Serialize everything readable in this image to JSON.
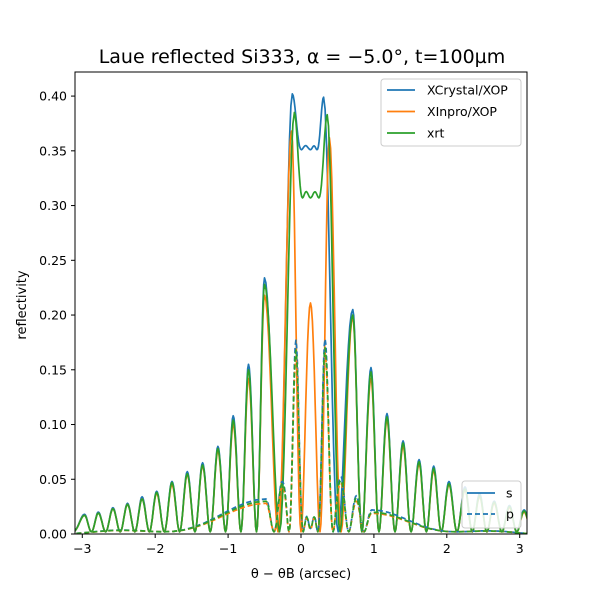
{
  "chart_data": {
    "type": "line",
    "title": "Laue reflected Si333, α = −5.0°, t=100µm",
    "xlabel": "θ − θB (arcsec)",
    "ylabel": "reflectivity",
    "xlim": [
      -3.1,
      3.1
    ],
    "ylim": [
      0,
      0.422
    ],
    "xticks": [
      -3,
      -2,
      -1,
      0,
      1,
      2,
      3
    ],
    "xtick_labels": [
      "−3",
      "−2",
      "−1",
      "0",
      "1",
      "2",
      "3"
    ],
    "yticks": [
      0.0,
      0.05,
      0.1,
      0.15,
      0.2,
      0.25,
      0.3,
      0.35,
      0.4
    ],
    "ytick_labels": [
      "0.00",
      "0.05",
      "0.10",
      "0.15",
      "0.20",
      "0.25",
      "0.30",
      "0.35",
      "0.40"
    ],
    "grid": false,
    "legend_series": {
      "placement": "top-right",
      "entries": [
        {
          "name": "XCrystal/XOP",
          "color": "#1f77b4"
        },
        {
          "name": "XInpro/XOP",
          "color": "#ff7f0e"
        },
        {
          "name": "xrt",
          "color": "#2ca02c"
        }
      ]
    },
    "legend_polarization": {
      "placement": "bottom-right",
      "entries": [
        {
          "name": "s",
          "style": "solid",
          "color": "#1f77b4"
        },
        {
          "name": "p",
          "style": "dashed",
          "color": "#1f77b4"
        }
      ]
    },
    "series": [
      {
        "name": "XCrystal/XOP",
        "polarization": "s",
        "color": "#1f77b4",
        "peaks": [
          [
            -2.97,
            0.018
          ],
          [
            -2.78,
            0.02
          ],
          [
            -2.58,
            0.024
          ],
          [
            -2.38,
            0.028
          ],
          [
            -2.18,
            0.034
          ],
          [
            -1.98,
            0.039
          ],
          [
            -1.77,
            0.048
          ],
          [
            -1.56,
            0.057
          ],
          [
            -1.35,
            0.065
          ],
          [
            -1.14,
            0.08
          ],
          [
            -0.93,
            0.108
          ],
          [
            -0.72,
            0.155
          ],
          [
            -0.5,
            0.234
          ],
          [
            -0.12,
            0.402
          ],
          [
            0.31,
            0.399
          ],
          [
            0.71,
            0.205
          ],
          [
            0.96,
            0.152
          ],
          [
            1.18,
            0.11
          ],
          [
            1.4,
            0.085
          ],
          [
            1.62,
            0.068
          ],
          [
            1.82,
            0.062
          ],
          [
            2.03,
            0.048
          ],
          [
            2.25,
            0.043
          ],
          [
            2.45,
            0.037
          ],
          [
            2.65,
            0.03
          ],
          [
            2.86,
            0.026
          ],
          [
            3.06,
            0.022
          ]
        ],
        "dips": [
          [
            0.13,
            0.351
          ]
        ]
      },
      {
        "name": "XInpro/XOP",
        "polarization": "s",
        "color": "#ff7f0e",
        "peaks": [
          [
            -2.97,
            0.017
          ],
          [
            -2.78,
            0.019
          ],
          [
            -2.58,
            0.023
          ],
          [
            -2.38,
            0.027
          ],
          [
            -2.18,
            0.032
          ],
          [
            -1.98,
            0.037
          ],
          [
            -1.77,
            0.045
          ],
          [
            -1.56,
            0.054
          ],
          [
            -1.35,
            0.062
          ],
          [
            -1.14,
            0.076
          ],
          [
            -0.93,
            0.1
          ],
          [
            -0.72,
            0.142
          ],
          [
            -0.5,
            0.218
          ],
          [
            -0.13,
            0.368
          ],
          [
            0.39,
            0.362
          ],
          [
            0.71,
            0.198
          ],
          [
            0.96,
            0.142
          ],
          [
            1.18,
            0.104
          ],
          [
            1.4,
            0.08
          ],
          [
            1.62,
            0.064
          ],
          [
            1.82,
            0.058
          ],
          [
            2.03,
            0.045
          ],
          [
            2.25,
            0.04
          ],
          [
            2.45,
            0.034
          ],
          [
            2.65,
            0.028
          ],
          [
            2.86,
            0.024
          ],
          [
            3.06,
            0.02
          ]
        ],
        "dips": [
          [
            0.13,
            0.211
          ]
        ]
      },
      {
        "name": "xrt",
        "polarization": "s",
        "color": "#2ca02c",
        "peaks": [
          [
            -2.97,
            0.017
          ],
          [
            -2.78,
            0.019
          ],
          [
            -2.58,
            0.023
          ],
          [
            -2.38,
            0.027
          ],
          [
            -2.18,
            0.032
          ],
          [
            -1.98,
            0.038
          ],
          [
            -1.77,
            0.047
          ],
          [
            -1.56,
            0.055
          ],
          [
            -1.35,
            0.063
          ],
          [
            -1.14,
            0.078
          ],
          [
            -0.93,
            0.104
          ],
          [
            -0.72,
            0.15
          ],
          [
            -0.5,
            0.228
          ],
          [
            -0.09,
            0.385
          ],
          [
            0.36,
            0.383
          ],
          [
            0.71,
            0.2
          ],
          [
            0.96,
            0.148
          ],
          [
            1.18,
            0.107
          ],
          [
            1.4,
            0.083
          ],
          [
            1.62,
            0.066
          ],
          [
            1.82,
            0.06
          ],
          [
            2.03,
            0.046
          ],
          [
            2.25,
            0.041
          ],
          [
            2.45,
            0.035
          ],
          [
            2.65,
            0.029
          ],
          [
            2.86,
            0.025
          ],
          [
            3.06,
            0.021
          ]
        ],
        "dips": [
          [
            0.13,
            0.307
          ]
        ]
      },
      {
        "name": "XCrystal/XOP",
        "polarization": "p",
        "color": "#1f77b4",
        "peaks": [
          [
            -0.48,
            0.032
          ],
          [
            -0.26,
            0.048
          ],
          [
            -0.07,
            0.177
          ],
          [
            0.33,
            0.178
          ],
          [
            0.55,
            0.052
          ],
          [
            0.76,
            0.035
          ],
          [
            0.97,
            0.022
          ]
        ],
        "dips": [
          [
            0.13,
            0.005
          ]
        ]
      },
      {
        "name": "XInpro/XOP",
        "polarization": "p",
        "color": "#ff7f0e",
        "peaks": [
          [
            -0.48,
            0.028
          ],
          [
            -0.26,
            0.043
          ],
          [
            -0.07,
            0.162
          ],
          [
            0.33,
            0.165
          ],
          [
            0.55,
            0.046
          ],
          [
            0.76,
            0.03
          ],
          [
            0.97,
            0.019
          ]
        ],
        "dips": [
          [
            0.13,
            0.004
          ]
        ]
      },
      {
        "name": "xrt",
        "polarization": "p",
        "color": "#2ca02c",
        "peaks": [
          [
            -0.48,
            0.03
          ],
          [
            -0.26,
            0.046
          ],
          [
            -0.07,
            0.168
          ],
          [
            0.33,
            0.17
          ],
          [
            0.55,
            0.049
          ],
          [
            0.76,
            0.033
          ],
          [
            0.97,
            0.02
          ]
        ],
        "dips": [
          [
            0.13,
            0.005
          ]
        ]
      }
    ]
  }
}
